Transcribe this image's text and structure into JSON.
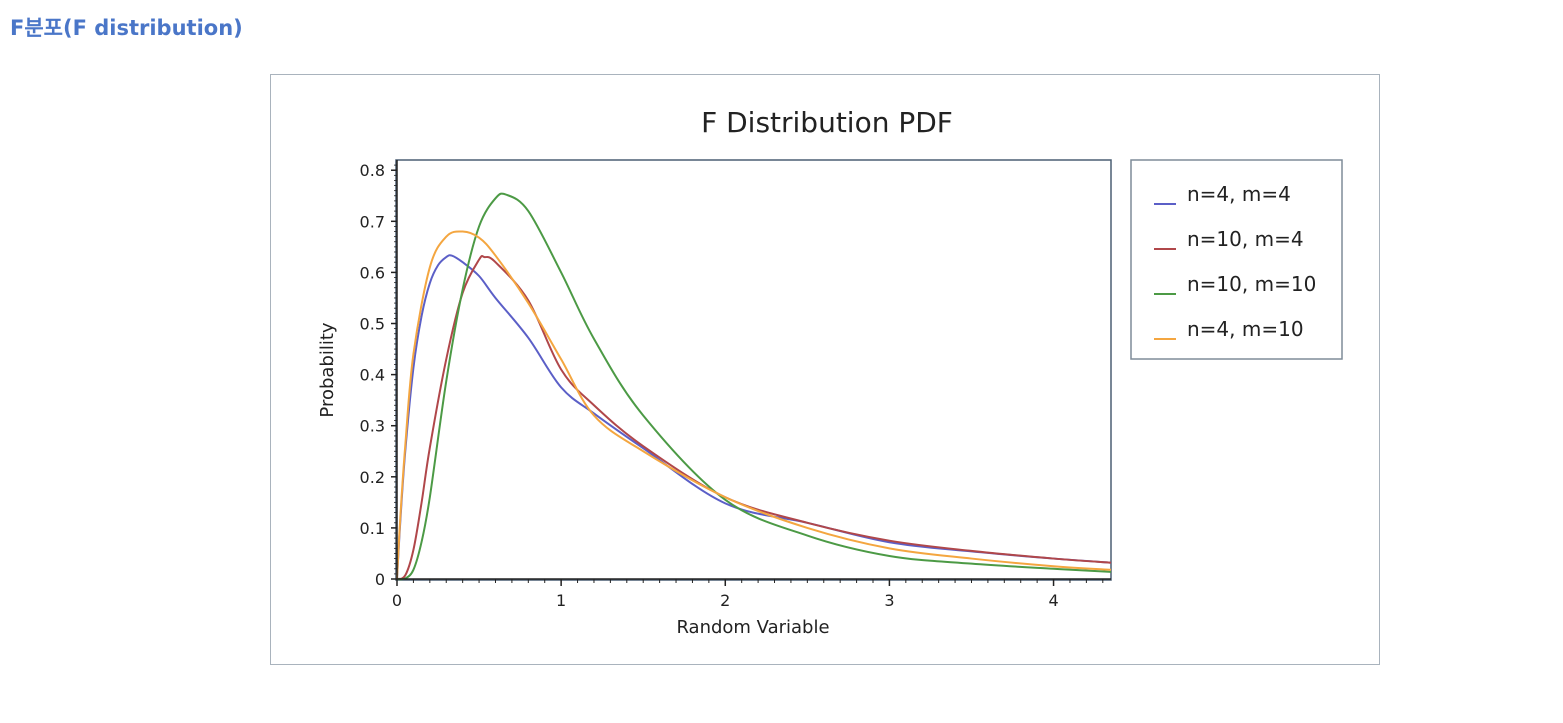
{
  "page": {
    "heading": "F분포(F distribution)"
  },
  "colors": {
    "heading": "#4a76c8",
    "frame_border": "#a9b3bd",
    "axes": "#4b5f73"
  },
  "chart_data": {
    "type": "line",
    "title": "F Distribution PDF",
    "xlabel": "Random Variable",
    "ylabel": "Probability",
    "xlim": [
      0,
      4.35
    ],
    "ylim": [
      0,
      0.82
    ],
    "xticks": [
      0,
      1,
      2,
      3,
      4
    ],
    "xtick_labels": [
      "0",
      "1",
      "2",
      "3",
      "4"
    ],
    "yticks": [
      0,
      0.1,
      0.2,
      0.3,
      0.4,
      0.5,
      0.6,
      0.7,
      0.8
    ],
    "ytick_labels": [
      "0",
      "0.1",
      "0.2",
      "0.3",
      "0.4",
      "0.5",
      "0.6",
      "0.7",
      "0.8"
    ],
    "grid": false,
    "legend_position": "outside-right",
    "series": [
      {
        "name": "n=4, m=4",
        "color": "#5b5fc7",
        "x": [
          0,
          0.02,
          0.05,
          0.1,
          0.15,
          0.2,
          0.25,
          0.3,
          0.333,
          0.4,
          0.5,
          0.6,
          0.8,
          1.0,
          1.2,
          1.5,
          2.0,
          2.5,
          3.0,
          3.5,
          4.0,
          4.35
        ],
        "y": [
          0,
          0.112,
          0.249,
          0.413,
          0.515,
          0.579,
          0.614,
          0.63,
          0.633,
          0.62,
          0.593,
          0.55,
          0.472,
          0.375,
          0.324,
          0.256,
          0.148,
          0.11,
          0.072,
          0.054,
          0.04,
          0.032
        ]
      },
      {
        "name": "n=10, m=4",
        "color": "#b0474a",
        "x": [
          0,
          0.05,
          0.1,
          0.15,
          0.2,
          0.3,
          0.4,
          0.5,
          0.533,
          0.6,
          0.8,
          1.0,
          1.2,
          1.5,
          2.0,
          2.5,
          3.0,
          3.5,
          4.0,
          4.35
        ],
        "y": [
          0,
          0.007,
          0.057,
          0.15,
          0.257,
          0.43,
          0.56,
          0.625,
          0.63,
          0.62,
          0.545,
          0.41,
          0.34,
          0.26,
          0.16,
          0.11,
          0.075,
          0.055,
          0.04,
          0.032
        ]
      },
      {
        "name": "n=10, m=10",
        "color": "#4c9a45",
        "x": [
          0,
          0.05,
          0.1,
          0.15,
          0.2,
          0.3,
          0.4,
          0.5,
          0.6,
          0.667,
          0.8,
          1.0,
          1.2,
          1.5,
          2.0,
          2.5,
          3.0,
          3.5,
          4.0,
          4.35
        ],
        "y": [
          0,
          0.001,
          0.018,
          0.073,
          0.16,
          0.387,
          0.567,
          0.69,
          0.745,
          0.752,
          0.72,
          0.6,
          0.47,
          0.32,
          0.155,
          0.085,
          0.045,
          0.03,
          0.02,
          0.014
        ]
      },
      {
        "name": "n=4, m=10",
        "color": "#f4a640",
        "x": [
          0,
          0.02,
          0.05,
          0.1,
          0.2,
          0.3,
          0.4,
          0.5,
          0.6,
          0.8,
          1.0,
          1.2,
          1.5,
          2.0,
          2.5,
          3.0,
          3.5,
          4.0,
          4.35
        ],
        "y": [
          0,
          0.12,
          0.26,
          0.44,
          0.61,
          0.67,
          0.68,
          0.668,
          0.633,
          0.54,
          0.43,
          0.32,
          0.25,
          0.16,
          0.1,
          0.06,
          0.04,
          0.025,
          0.018
        ]
      }
    ]
  }
}
